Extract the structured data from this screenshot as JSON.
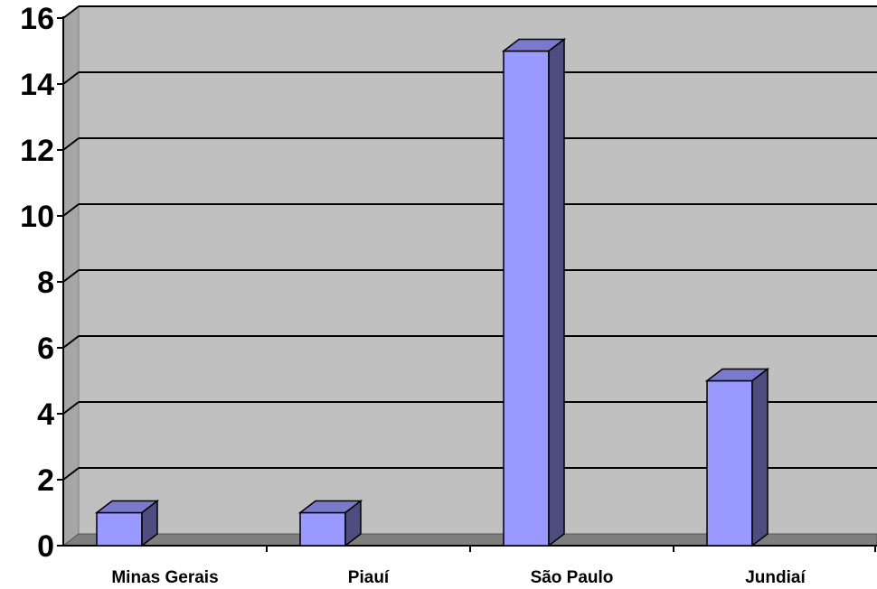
{
  "chart_data": {
    "type": "bar",
    "title": "",
    "xlabel": "",
    "ylabel": "",
    "categories": [
      "Minas Gerais",
      "Piauí",
      "São Paulo",
      "Jundiaí"
    ],
    "values": [
      1,
      1,
      15,
      5
    ],
    "ylim": [
      0,
      16
    ],
    "yticks": [
      "0",
      "2",
      "4",
      "6",
      "8",
      "10",
      "12",
      "14",
      "16"
    ],
    "grid": true,
    "legend": "none",
    "style": "3d-column",
    "colors": {
      "bar_front": "#9999ff",
      "bar_top": "#7a7acc",
      "bar_side": "#4d4d80",
      "plot_wall": "#c0c0c0",
      "floor": "#7f7f7f",
      "gridline": "#000000",
      "axis": "#000000"
    }
  }
}
